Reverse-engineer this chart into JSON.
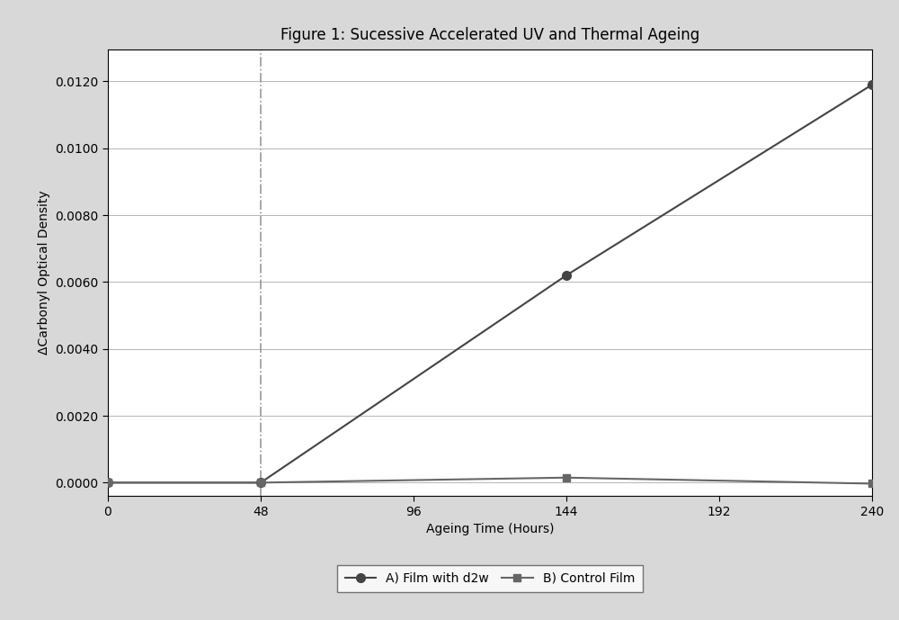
{
  "title": "Figure 1: Sucessive Accelerated UV and Thermal Ageing",
  "xlabel": "Ageing Time (Hours)",
  "ylabel": "ΔCarbonyl Optical Density",
  "series_A": {
    "label": "A) Film with d2w",
    "x": [
      0,
      48,
      144,
      240
    ],
    "y": [
      0.0,
      0.0,
      0.0062,
      0.0119
    ],
    "color": "#444444",
    "marker": "o",
    "markersize": 7,
    "linewidth": 1.5
  },
  "series_B": {
    "label": "B) Control Film",
    "x": [
      0,
      48,
      144,
      240
    ],
    "y": [
      0.0,
      0.0,
      0.00015,
      -3e-05
    ],
    "color": "#666666",
    "marker": "s",
    "markersize": 6,
    "linewidth": 1.5
  },
  "vline_x": 48,
  "vline_style": "-.",
  "vline_color": "#999999",
  "xlim": [
    0,
    240
  ],
  "ylim": [
    -0.0004,
    0.01295
  ],
  "xticks": [
    0,
    48,
    96,
    144,
    192,
    240
  ],
  "yticks": [
    0.0,
    0.002,
    0.004,
    0.006,
    0.008,
    0.01,
    0.012
  ],
  "outer_bg_color": "#d8d8d8",
  "inner_bg_color": "#ffffff",
  "plot_bg_color": "#ffffff",
  "grid_color": "#aaaaaa",
  "title_fontsize": 12,
  "axis_label_fontsize": 10,
  "tick_fontsize": 10,
  "legend_fontsize": 10
}
